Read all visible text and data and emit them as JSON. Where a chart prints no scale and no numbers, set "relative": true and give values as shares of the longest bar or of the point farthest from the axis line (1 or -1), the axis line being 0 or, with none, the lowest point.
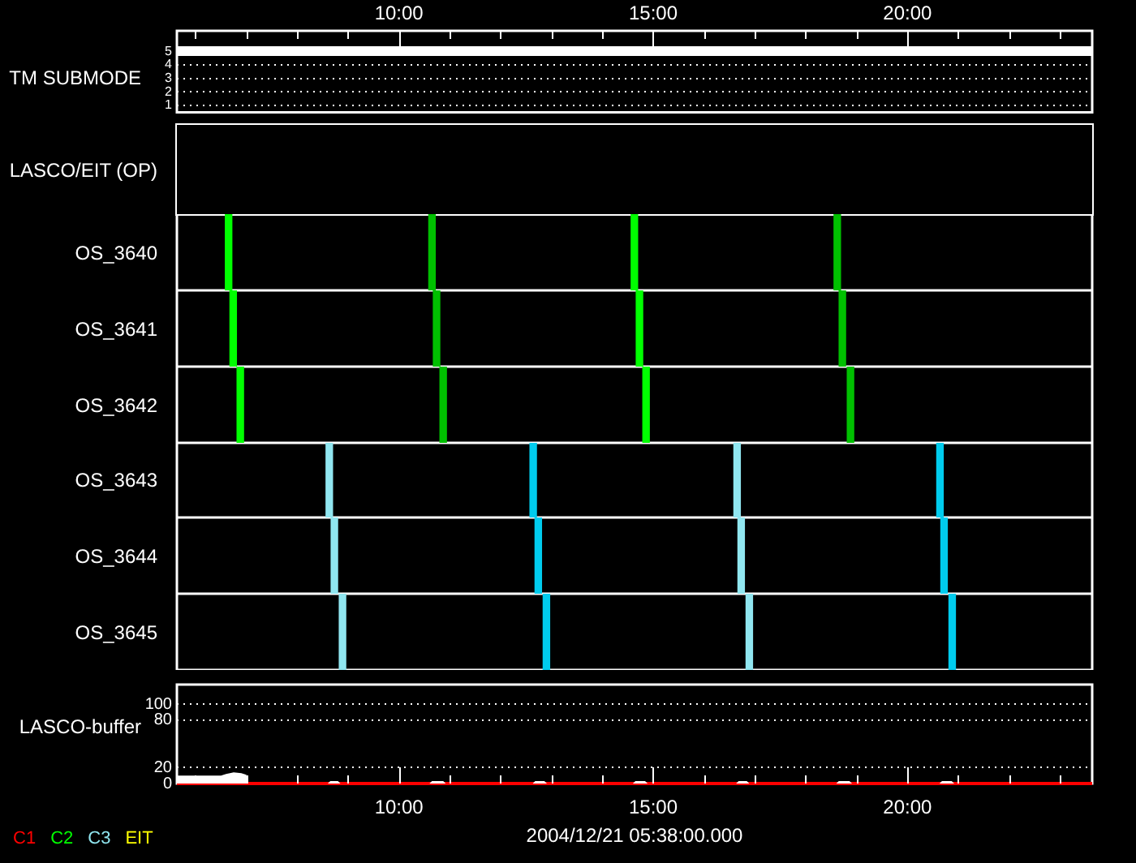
{
  "chart_data": [
    {
      "type": "line",
      "ylabel": "TM SUBMODE",
      "x": [
        5.633,
        23.633
      ],
      "values": [
        5,
        5
      ],
      "color": "#ffffff",
      "xlim": [
        5.633,
        23.633
      ],
      "xticks": [
        {
          "value": 6,
          "label": null
        },
        {
          "value": 7,
          "label": null
        },
        {
          "value": 8,
          "label": null
        },
        {
          "value": 9,
          "label": null
        },
        {
          "value": 10,
          "label": "10:00"
        },
        {
          "value": 11,
          "label": null
        },
        {
          "value": 12,
          "label": null
        },
        {
          "value": 13,
          "label": null
        },
        {
          "value": 14,
          "label": null
        },
        {
          "value": 15,
          "label": "15:00"
        },
        {
          "value": 16,
          "label": null
        },
        {
          "value": 17,
          "label": null
        },
        {
          "value": 18,
          "label": null
        },
        {
          "value": 19,
          "label": null
        },
        {
          "value": 20,
          "label": "20:00"
        },
        {
          "value": 21,
          "label": null
        },
        {
          "value": 22,
          "label": null
        },
        {
          "value": 23,
          "label": null
        }
      ],
      "ylim": [
        0.5,
        6.5
      ],
      "yticks": [
        1,
        2,
        3,
        4,
        5
      ],
      "grid": "y"
    },
    {
      "type": "other",
      "ylabel": "LASCO/EIT (OP)"
    },
    {
      "type": "bar",
      "ylabel": "OS_3640",
      "x": [
        6.65,
        10.65,
        14.63,
        18.62
      ],
      "values": [
        1,
        1,
        1,
        1
      ],
      "colors": [
        "#00ff00",
        "#00c000",
        "#00ff00",
        "#00c000"
      ],
      "relative": true,
      "xlim": [
        5.633,
        23.633
      ],
      "tick_labels": false
    },
    {
      "type": "bar",
      "ylabel": "OS_3641",
      "x": [
        6.74,
        10.74,
        14.73,
        18.72
      ],
      "values": [
        1,
        1,
        1,
        1
      ],
      "colors": [
        "#00ff00",
        "#00c000",
        "#00ff00",
        "#00c000"
      ],
      "relative": true,
      "xlim": [
        5.633,
        23.633
      ],
      "tick_labels": false
    },
    {
      "type": "bar",
      "ylabel": "OS_3642",
      "x": [
        6.88,
        10.87,
        14.86,
        18.88
      ],
      "values": [
        1,
        1,
        1,
        1
      ],
      "colors": [
        "#00ff00",
        "#00c000",
        "#00ff00",
        "#00c000"
      ],
      "relative": true,
      "xlim": [
        5.633,
        23.633
      ],
      "tick_labels": false
    },
    {
      "type": "bar",
      "ylabel": "OS_3643",
      "x": [
        8.63,
        12.64,
        16.65,
        20.64
      ],
      "values": [
        1,
        1,
        1,
        1
      ],
      "colors": [
        "#90e6f0",
        "#00ccee",
        "#90e6f0",
        "#00ccee"
      ],
      "relative": true,
      "xlim": [
        5.633,
        23.633
      ],
      "tick_labels": false
    },
    {
      "type": "bar",
      "ylabel": "OS_3644",
      "x": [
        8.73,
        12.74,
        16.73,
        20.72
      ],
      "values": [
        1,
        1,
        1,
        1
      ],
      "colors": [
        "#90e6f0",
        "#00ccee",
        "#90e6f0",
        "#00ccee"
      ],
      "relative": true,
      "xlim": [
        5.633,
        23.633
      ],
      "tick_labels": false
    },
    {
      "type": "bar",
      "ylabel": "OS_3645",
      "x": [
        8.89,
        12.9,
        16.89,
        20.88
      ],
      "values": [
        1,
        1,
        1,
        1
      ],
      "colors": [
        "#90e6f0",
        "#00ccee",
        "#90e6f0",
        "#00ccee"
      ],
      "relative": true,
      "xlim": [
        5.633,
        23.633
      ],
      "tick_labels": false
    },
    {
      "type": "line",
      "ylabel": "LASCO-buffer",
      "xlabel": "2004/12/21 05:38:00.000",
      "xlim": [
        5.633,
        23.633
      ],
      "xticks": [
        {
          "value": 6,
          "label": null
        },
        {
          "value": 7,
          "label": null
        },
        {
          "value": 8,
          "label": null
        },
        {
          "value": 9,
          "label": null
        },
        {
          "value": 10,
          "label": "10:00"
        },
        {
          "value": 11,
          "label": null
        },
        {
          "value": 12,
          "label": null
        },
        {
          "value": 13,
          "label": null
        },
        {
          "value": 14,
          "label": null
        },
        {
          "value": 15,
          "label": "15:00"
        },
        {
          "value": 16,
          "label": null
        },
        {
          "value": 17,
          "label": null
        },
        {
          "value": 18,
          "label": null
        },
        {
          "value": 19,
          "label": null
        },
        {
          "value": 20,
          "label": "20:00"
        },
        {
          "value": 21,
          "label": null
        },
        {
          "value": 22,
          "label": null
        },
        {
          "value": 23,
          "label": null
        }
      ],
      "ylim": [
        0,
        125
      ],
      "yticks": [
        0,
        20,
        80,
        100
      ],
      "grid": "y",
      "legend": "bottom left",
      "series": [
        {
          "name": "C1",
          "color": "#ff0000",
          "x": [
            5.633,
            23.633
          ],
          "values": [
            0,
            0
          ]
        },
        {
          "name": "C2",
          "color": "#00ff00"
        },
        {
          "name": "C3",
          "color": "#90e6f0"
        },
        {
          "name": "EIT",
          "color": "#ffff00"
        },
        {
          "type": "area",
          "color": "#ffffff",
          "x": [
            5.633,
            6.5,
            6.6,
            6.75,
            6.9,
            7.0,
            7.03,
            8.6,
            8.65,
            8.8,
            8.85,
            10.6,
            10.65,
            10.87,
            10.92,
            12.63,
            12.68,
            12.86,
            12.91,
            14.6,
            14.65,
            14.84,
            14.89,
            16.63,
            16.68,
            16.84,
            16.89,
            18.6,
            18.65,
            18.86,
            18.91,
            20.63,
            20.68,
            20.87,
            20.92,
            23.633
          ],
          "values": [
            10,
            10,
            12,
            14,
            13,
            11,
            0,
            0,
            3,
            3,
            0,
            0,
            3,
            3,
            0,
            0,
            3,
            3,
            0,
            0,
            3,
            3,
            0,
            0,
            3,
            3,
            0,
            0,
            3,
            3,
            0,
            0,
            3,
            3,
            0,
            0
          ]
        }
      ]
    }
  ]
}
